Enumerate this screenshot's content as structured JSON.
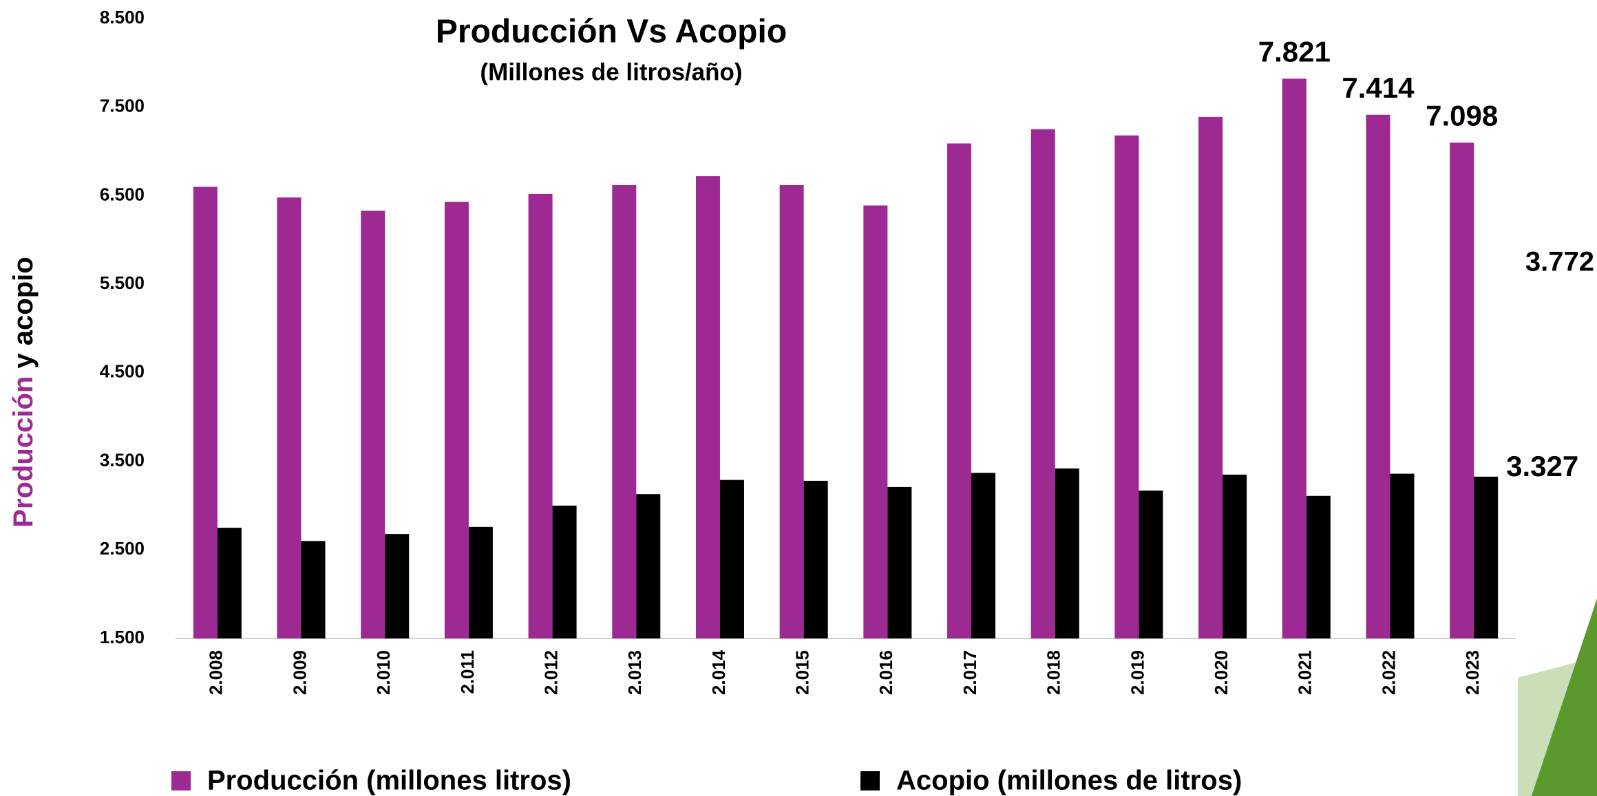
{
  "chart_data": {
    "type": "bar",
    "title": "Producción Vs Acopio",
    "subtitle": "(Millones de litros/año)",
    "ylabel_parts": [
      "Producción",
      "y acopio"
    ],
    "ylabel_colors": [
      "#9c2a92",
      "#000000"
    ],
    "annotation": "3.772",
    "annotation_color": "#ff0000",
    "categories": [
      "2.008",
      "2.009",
      "2.010",
      "2.011",
      "2.012",
      "2.013",
      "2.014",
      "2.015",
      "2.016",
      "2.017",
      "2.018",
      "2.019",
      "2.020",
      "2.021",
      "2.022",
      "2.023"
    ],
    "series": [
      {
        "name": "Producción (millones litros)",
        "color": "#9c2a92",
        "values": [
          6600,
          6480,
          6330,
          6430,
          6520,
          6620,
          6720,
          6620,
          6390,
          7090,
          7250,
          7180,
          7390,
          7821,
          7414,
          7098
        ],
        "value_labels": [
          null,
          null,
          null,
          null,
          null,
          null,
          null,
          null,
          null,
          null,
          null,
          null,
          null,
          "7.821",
          "7.414",
          "7.098"
        ]
      },
      {
        "name": "Acopio (millones de litros)",
        "color": "#000000",
        "values": [
          2750,
          2600,
          2680,
          2760,
          3000,
          3130,
          3290,
          3280,
          3210,
          3370,
          3420,
          3170,
          3350,
          3110,
          3360,
          3327
        ],
        "value_labels": [
          null,
          null,
          null,
          null,
          null,
          null,
          null,
          null,
          null,
          null,
          null,
          null,
          null,
          null,
          null,
          "3.327"
        ]
      }
    ],
    "ylim": [
      1500,
      8500
    ],
    "yticks": [
      {
        "value": 1500,
        "label": "1.500"
      },
      {
        "value": 2500,
        "label": "2.500"
      },
      {
        "value": 3500,
        "label": "3.500"
      },
      {
        "value": 4500,
        "label": "4.500"
      },
      {
        "value": 5500,
        "label": "5.500"
      },
      {
        "value": 6500,
        "label": "6.500"
      },
      {
        "value": 7500,
        "label": "7.500"
      },
      {
        "value": 8500,
        "label": "8.500"
      }
    ],
    "grid": false
  }
}
